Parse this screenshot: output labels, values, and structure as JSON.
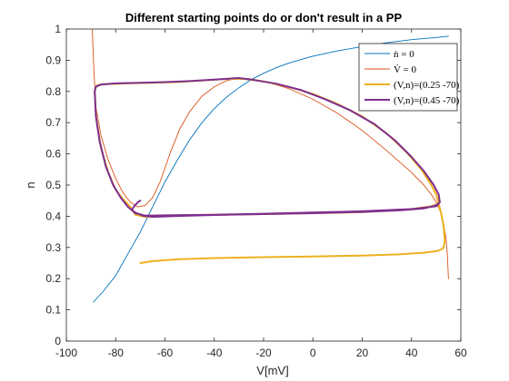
{
  "chart_data": {
    "type": "line",
    "title": "Different starting points do or don't result in a PP",
    "xlabel": "V[mV]",
    "ylabel": "n",
    "xlim": [
      -100,
      60
    ],
    "ylim": [
      0,
      1
    ],
    "xticks": [
      -100,
      -80,
      -60,
      -40,
      -20,
      0,
      20,
      40,
      60
    ],
    "yticks": [
      0,
      0.1,
      0.2,
      0.3,
      0.4,
      0.5,
      0.6,
      0.7,
      0.8,
      0.9,
      1
    ],
    "grid": false,
    "box": true,
    "legend_position": "top-right",
    "series": [
      {
        "name": "ṅ = 0",
        "color": "#0072BD",
        "line_width": "thin",
        "points": [
          [
            -89,
            0.125
          ],
          [
            -85,
            0.16
          ],
          [
            -80,
            0.21
          ],
          [
            -75,
            0.28
          ],
          [
            -70,
            0.35
          ],
          [
            -65,
            0.43
          ],
          [
            -60,
            0.51
          ],
          [
            -55,
            0.58
          ],
          [
            -50,
            0.645
          ],
          [
            -45,
            0.7
          ],
          [
            -40,
            0.745
          ],
          [
            -35,
            0.782
          ],
          [
            -30,
            0.812
          ],
          [
            -25,
            0.838
          ],
          [
            -20,
            0.858
          ],
          [
            -15,
            0.876
          ],
          [
            -10,
            0.89
          ],
          [
            -5,
            0.902
          ],
          [
            0,
            0.913
          ],
          [
            10,
            0.93
          ],
          [
            20,
            0.944
          ],
          [
            30,
            0.956
          ],
          [
            40,
            0.966
          ],
          [
            50,
            0.973
          ],
          [
            55,
            0.977
          ]
        ]
      },
      {
        "name": "V̇ = 0",
        "color": "#D95319",
        "line_width": "thin",
        "points": [
          [
            -89.5,
            1.0
          ],
          [
            -89,
            0.9
          ],
          [
            -88.5,
            0.82
          ],
          [
            -88,
            0.75
          ],
          [
            -86,
            0.66
          ],
          [
            -83,
            0.58
          ],
          [
            -80,
            0.52
          ],
          [
            -77,
            0.475
          ],
          [
            -74,
            0.445
          ],
          [
            -71,
            0.43
          ],
          [
            -68,
            0.435
          ],
          [
            -65,
            0.46
          ],
          [
            -62,
            0.51
          ],
          [
            -58,
            0.6
          ],
          [
            -54,
            0.68
          ],
          [
            -50,
            0.735
          ],
          [
            -45,
            0.785
          ],
          [
            -40,
            0.815
          ],
          [
            -35,
            0.835
          ],
          [
            -30,
            0.843
          ],
          [
            -25,
            0.84
          ],
          [
            -20,
            0.833
          ],
          [
            -10,
            0.81
          ],
          [
            0,
            0.775
          ],
          [
            10,
            0.73
          ],
          [
            20,
            0.675
          ],
          [
            30,
            0.61
          ],
          [
            40,
            0.54
          ],
          [
            45,
            0.5
          ],
          [
            48,
            0.47
          ],
          [
            50,
            0.445
          ],
          [
            52,
            0.41
          ],
          [
            53,
            0.375
          ],
          [
            54,
            0.33
          ],
          [
            54.5,
            0.28
          ],
          [
            55,
            0.2
          ]
        ]
      },
      {
        "name": "(V,n)=(0.25 -70)",
        "color": "#EDB120",
        "line_width": "thick",
        "points": [
          [
            -70,
            0.25
          ],
          [
            -65,
            0.256
          ],
          [
            -55,
            0.262
          ],
          [
            -40,
            0.266
          ],
          [
            -20,
            0.269
          ],
          [
            0,
            0.271
          ],
          [
            20,
            0.274
          ],
          [
            35,
            0.278
          ],
          [
            45,
            0.283
          ],
          [
            50,
            0.288
          ],
          [
            52,
            0.293
          ],
          [
            53,
            0.3
          ],
          [
            53.5,
            0.32
          ],
          [
            53,
            0.37
          ],
          [
            52,
            0.41
          ],
          [
            51,
            0.44
          ],
          [
            50,
            0.47
          ],
          [
            48,
            0.5
          ],
          [
            44,
            0.55
          ],
          [
            38,
            0.605
          ],
          [
            30,
            0.665
          ],
          [
            20,
            0.72
          ],
          [
            10,
            0.76
          ],
          [
            0,
            0.792
          ],
          [
            -10,
            0.815
          ],
          [
            -20,
            0.832
          ],
          [
            -28,
            0.84
          ],
          [
            -35,
            0.84
          ],
          [
            -45,
            0.835
          ],
          [
            -55,
            0.83
          ],
          [
            -65,
            0.828
          ],
          [
            -75,
            0.826
          ],
          [
            -85,
            0.823
          ],
          [
            -87.5,
            0.82
          ],
          [
            -88.5,
            0.805
          ],
          [
            -88,
            0.72
          ],
          [
            -86,
            0.62
          ],
          [
            -83,
            0.54
          ],
          [
            -80,
            0.485
          ],
          [
            -77,
            0.455
          ],
          [
            -74,
            0.43
          ],
          [
            -72,
            0.405
          ],
          [
            -68,
            0.398
          ],
          [
            -60,
            0.402
          ],
          [
            -40,
            0.405
          ],
          [
            -20,
            0.407
          ],
          [
            0,
            0.41
          ],
          [
            20,
            0.413
          ],
          [
            40,
            0.423
          ],
          [
            48,
            0.432
          ],
          [
            51,
            0.44
          ]
        ]
      },
      {
        "name": "(V,n)=(0.45 -70)",
        "color": "#7E2F8E",
        "line_width": "thick",
        "points": [
          [
            -70,
            0.45
          ],
          [
            -71,
            0.445
          ],
          [
            -72.5,
            0.432
          ],
          [
            -73.5,
            0.42
          ],
          [
            -72,
            0.412
          ],
          [
            -69,
            0.402
          ],
          [
            -65,
            0.398
          ],
          [
            -55,
            0.401
          ],
          [
            -40,
            0.404
          ],
          [
            -20,
            0.407
          ],
          [
            0,
            0.41
          ],
          [
            20,
            0.414
          ],
          [
            35,
            0.419
          ],
          [
            45,
            0.425
          ],
          [
            50,
            0.435
          ],
          [
            51.5,
            0.445
          ],
          [
            51,
            0.47
          ],
          [
            49,
            0.5
          ],
          [
            45,
            0.545
          ],
          [
            40,
            0.59
          ],
          [
            33,
            0.645
          ],
          [
            25,
            0.695
          ],
          [
            15,
            0.74
          ],
          [
            5,
            0.775
          ],
          [
            -5,
            0.805
          ],
          [
            -15,
            0.825
          ],
          [
            -25,
            0.838
          ],
          [
            -30,
            0.843
          ],
          [
            -40,
            0.838
          ],
          [
            -50,
            0.833
          ],
          [
            -60,
            0.83
          ],
          [
            -70,
            0.828
          ],
          [
            -80,
            0.826
          ],
          [
            -86,
            0.822
          ],
          [
            -88,
            0.815
          ],
          [
            -88.5,
            0.8
          ],
          [
            -88,
            0.72
          ],
          [
            -86.5,
            0.64
          ],
          [
            -84,
            0.56
          ],
          [
            -81,
            0.5
          ],
          [
            -78,
            0.46
          ],
          [
            -75,
            0.43
          ],
          [
            -72,
            0.41
          ],
          [
            -68,
            0.402
          ],
          [
            -60,
            0.403
          ],
          [
            -40,
            0.405
          ],
          [
            -20,
            0.408
          ],
          [
            0,
            0.412
          ],
          [
            20,
            0.416
          ],
          [
            40,
            0.423
          ],
          [
            50,
            0.432
          ],
          [
            51.5,
            0.445
          ]
        ]
      }
    ]
  }
}
